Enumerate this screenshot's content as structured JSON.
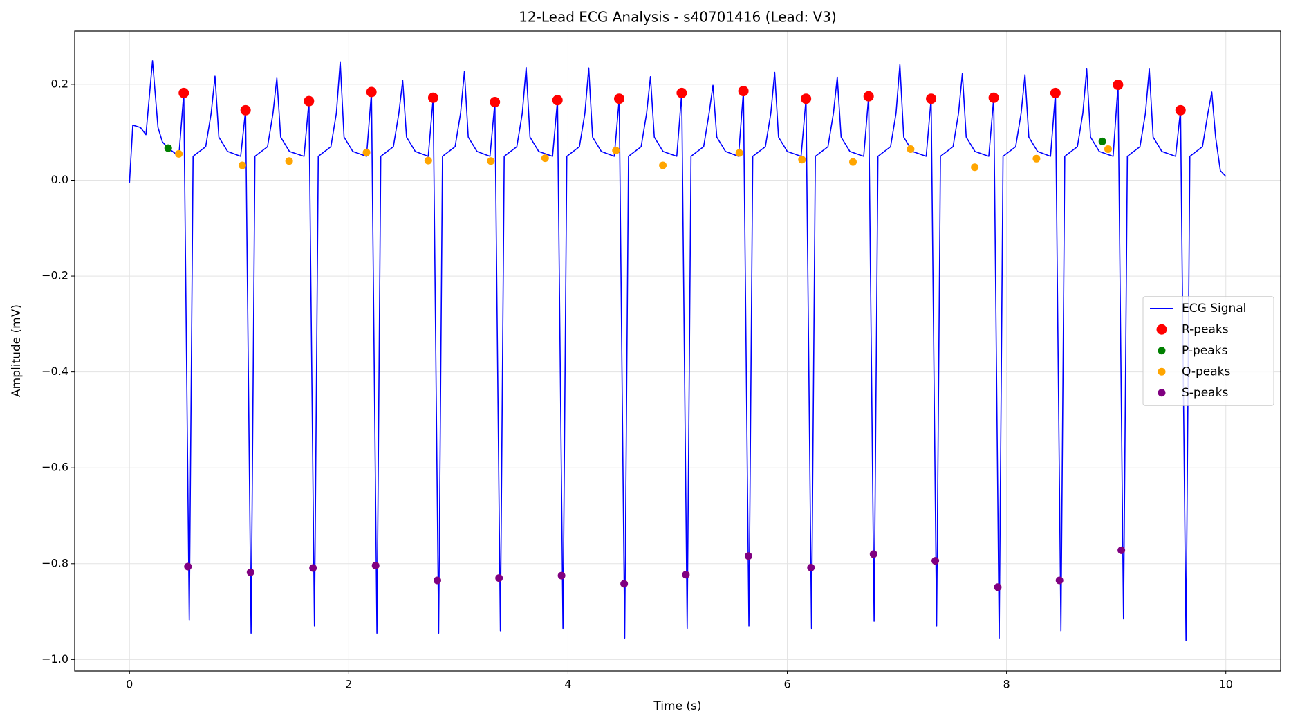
{
  "chart_data": {
    "type": "line",
    "title": "12-Lead ECG Analysis - s40701416 (Lead: V3)",
    "x_label": "Time (s)",
    "y_label": "Amplitude (mV)",
    "xlim": [
      -0.5,
      10.5
    ],
    "ylim": [
      -1.024,
      0.311
    ],
    "xticks": [
      0,
      2,
      4,
      6,
      8,
      10
    ],
    "yticks": [
      {
        "value": -1.0,
        "label": "−1.0"
      },
      {
        "value": -0.8,
        "label": "−0.8"
      },
      {
        "value": -0.6,
        "label": "−0.6"
      },
      {
        "value": -0.4,
        "label": "−0.4"
      },
      {
        "value": -0.2,
        "label": "−0.2"
      },
      {
        "value": 0,
        "label": "0.0"
      },
      {
        "value": 0.2,
        "label": "0.2"
      }
    ],
    "grid": true,
    "legend_position": "center right",
    "series": [
      {
        "name": "ECG Signal",
        "color": "#0000ff",
        "mode": "line",
        "x": [
          0,
          0.03,
          0.1,
          0.15,
          0.21,
          0.26,
          0.3,
          0.353,
          0.45,
          0.495,
          0.545,
          0.58,
          0.695,
          0.745,
          0.78,
          0.815,
          0.895,
          1.014,
          1.059,
          1.109,
          1.144,
          1.259,
          1.309,
          1.344,
          1.379,
          1.459,
          1.592,
          1.637,
          1.687,
          1.722,
          1.837,
          1.887,
          1.922,
          1.957,
          2.037,
          2.162,
          2.207,
          2.257,
          2.292,
          2.407,
          2.457,
          2.492,
          2.527,
          2.607,
          2.725,
          2.77,
          2.82,
          2.855,
          2.97,
          3.02,
          3.055,
          3.09,
          3.17,
          3.288,
          3.333,
          3.383,
          3.418,
          3.533,
          3.583,
          3.618,
          3.653,
          3.733,
          3.859,
          3.904,
          3.954,
          3.989,
          4.104,
          4.154,
          4.189,
          4.224,
          4.304,
          4.422,
          4.467,
          4.517,
          4.552,
          4.667,
          4.717,
          4.752,
          4.787,
          4.867,
          4.992,
          5.037,
          5.087,
          5.122,
          5.237,
          5.287,
          5.322,
          5.357,
          5.437,
          5.555,
          5.6,
          5.65,
          5.685,
          5.8,
          5.85,
          5.885,
          5.92,
          6.0,
          6.126,
          6.171,
          6.221,
          6.256,
          6.371,
          6.421,
          6.456,
          6.491,
          6.571,
          6.697,
          6.742,
          6.792,
          6.827,
          6.942,
          6.992,
          7.027,
          7.062,
          7.142,
          7.267,
          7.312,
          7.362,
          7.397,
          7.512,
          7.562,
          7.597,
          7.632,
          7.712,
          7.838,
          7.883,
          7.933,
          7.968,
          8.083,
          8.133,
          8.168,
          8.203,
          8.283,
          8.401,
          8.446,
          8.496,
          8.531,
          8.646,
          8.696,
          8.731,
          8.766,
          8.846,
          8.972,
          9.017,
          9.067,
          9.102,
          9.217,
          9.267,
          9.302,
          9.337,
          9.417,
          9.542,
          9.587,
          9.637,
          9.672,
          9.787,
          9.837,
          9.872,
          9.907,
          9.95,
          10.0
        ],
        "values": [
          -0.005,
          0.115,
          0.11,
          0.095,
          0.249,
          0.11,
          0.08,
          0.067,
          0.05,
          0.182,
          -0.917,
          0.05,
          0.07,
          0.14,
          0.217,
          0.09,
          0.06,
          0.05,
          0.146,
          -0.945,
          0.05,
          0.07,
          0.14,
          0.213,
          0.09,
          0.06,
          0.05,
          0.165,
          -0.93,
          0.05,
          0.07,
          0.14,
          0.247,
          0.09,
          0.06,
          0.05,
          0.184,
          -0.945,
          0.05,
          0.07,
          0.14,
          0.208,
          0.09,
          0.06,
          0.05,
          0.172,
          -0.945,
          0.05,
          0.07,
          0.14,
          0.227,
          0.09,
          0.06,
          0.05,
          0.163,
          -0.94,
          0.05,
          0.07,
          0.14,
          0.235,
          0.09,
          0.06,
          0.05,
          0.167,
          -0.935,
          0.05,
          0.07,
          0.14,
          0.234,
          0.09,
          0.06,
          0.05,
          0.17,
          -0.955,
          0.05,
          0.07,
          0.14,
          0.216,
          0.09,
          0.06,
          0.05,
          0.182,
          -0.935,
          0.05,
          0.07,
          0.14,
          0.198,
          0.09,
          0.06,
          0.05,
          0.186,
          -0.93,
          0.05,
          0.07,
          0.14,
          0.225,
          0.09,
          0.06,
          0.05,
          0.17,
          -0.935,
          0.05,
          0.07,
          0.14,
          0.215,
          0.09,
          0.06,
          0.05,
          0.175,
          -0.92,
          0.05,
          0.07,
          0.14,
          0.241,
          0.09,
          0.06,
          0.05,
          0.17,
          -0.93,
          0.05,
          0.07,
          0.14,
          0.223,
          0.09,
          0.06,
          0.05,
          0.172,
          -0.955,
          0.05,
          0.07,
          0.14,
          0.22,
          0.09,
          0.06,
          0.05,
          0.182,
          -0.94,
          0.05,
          0.07,
          0.14,
          0.232,
          0.09,
          0.06,
          0.05,
          0.199,
          -0.915,
          0.05,
          0.07,
          0.14,
          0.232,
          0.09,
          0.06,
          0.05,
          0.146,
          -0.96,
          0.05,
          0.07,
          0.14,
          0.184,
          0.09,
          0.02,
          0.008
        ]
      },
      {
        "name": "R-peaks",
        "color": "#ff0000",
        "mode": "points",
        "x": [
          0.495,
          1.059,
          1.637,
          2.207,
          2.77,
          3.333,
          3.904,
          4.467,
          5.037,
          5.6,
          6.171,
          6.742,
          7.312,
          7.883,
          8.446,
          9.017,
          9.587
        ],
        "values": [
          0.182,
          0.146,
          0.165,
          0.184,
          0.172,
          0.163,
          0.167,
          0.17,
          0.182,
          0.186,
          0.17,
          0.175,
          0.17,
          0.172,
          0.182,
          0.199,
          0.146
        ]
      },
      {
        "name": "P-peaks",
        "color": "#008000",
        "mode": "points",
        "x": [
          0.353,
          8.874
        ],
        "values": [
          0.067,
          0.081
        ]
      },
      {
        "name": "Q-peaks",
        "color": "#ffa500",
        "mode": "points",
        "x": [
          0.45,
          1.029,
          1.456,
          2.162,
          2.725,
          3.296,
          3.791,
          4.437,
          4.865,
          5.563,
          6.134,
          6.599,
          7.125,
          7.71,
          8.273,
          8.926
        ],
        "values": [
          0.055,
          0.031,
          0.04,
          0.058,
          0.041,
          0.04,
          0.046,
          0.062,
          0.031,
          0.057,
          0.043,
          0.038,
          0.065,
          0.027,
          0.045,
          0.065
        ]
      },
      {
        "name": "S-peaks",
        "color": "#800080",
        "mode": "points",
        "x": [
          0.533,
          1.104,
          1.674,
          2.245,
          2.808,
          3.371,
          3.941,
          4.512,
          5.075,
          5.646,
          6.216,
          6.787,
          7.35,
          7.92,
          8.483,
          9.047
        ],
        "values": [
          -0.806,
          -0.818,
          -0.809,
          -0.804,
          -0.835,
          -0.83,
          -0.825,
          -0.842,
          -0.823,
          -0.784,
          -0.808,
          -0.78,
          -0.794,
          -0.849,
          -0.835,
          -0.772
        ]
      }
    ]
  }
}
